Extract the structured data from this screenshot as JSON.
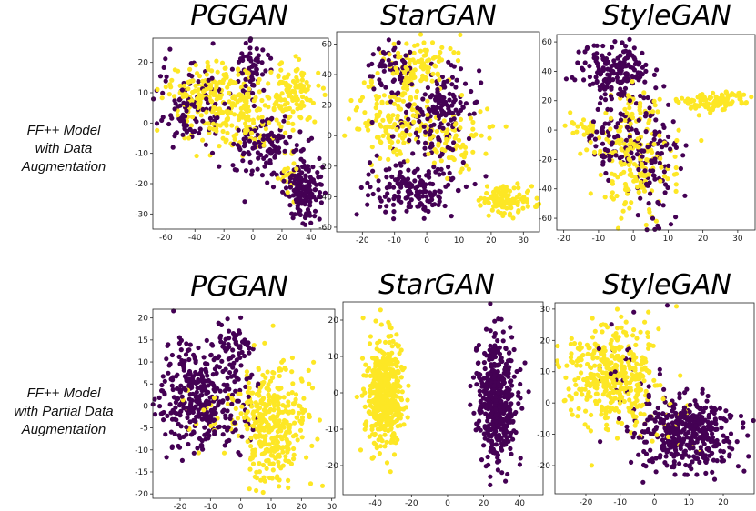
{
  "row_labels": [
    [
      "FF++ Model",
      "with Data",
      "Augmentation"
    ],
    [
      "FF++ Model",
      "with Partial Data",
      "Augmentation"
    ]
  ],
  "colors": {
    "class_a": "#440154",
    "class_b": "#fde725",
    "axis": "#222222"
  },
  "chart_data": [
    {
      "type": "scatter",
      "title": "PGGAN",
      "row": 0,
      "col": 0,
      "xlim": [
        -69,
        52
      ],
      "ylim": [
        -35,
        28
      ],
      "xticks": [
        -60,
        -40,
        -20,
        0,
        20,
        40
      ],
      "yticks": [
        -30,
        -20,
        -10,
        0,
        10,
        20
      ],
      "clusters": [
        {
          "cls": "b",
          "cx": -28,
          "cy": 10,
          "sx": 14,
          "sy": 5,
          "n": 180
        },
        {
          "cls": "a",
          "cx": -42,
          "cy": 5,
          "sx": 12,
          "sy": 7,
          "n": 110
        },
        {
          "cls": "b",
          "cx": 28,
          "cy": 10,
          "sx": 8,
          "sy": 5,
          "n": 110
        },
        {
          "cls": "a",
          "cx": 0,
          "cy": 18,
          "sx": 6,
          "sy": 5,
          "n": 60
        },
        {
          "cls": "b",
          "cx": -10,
          "cy": 2,
          "sx": 18,
          "sy": 7,
          "n": 120
        },
        {
          "cls": "a",
          "cx": 10,
          "cy": -8,
          "sx": 12,
          "sy": 6,
          "n": 110
        },
        {
          "cls": "a",
          "cx": 37,
          "cy": -22,
          "sx": 6,
          "sy": 5,
          "n": 150
        },
        {
          "cls": "b",
          "cx": 25,
          "cy": -15,
          "sx": 4,
          "sy": 4,
          "n": 20
        }
      ]
    },
    {
      "type": "scatter",
      "title": "StarGAN",
      "row": 0,
      "col": 1,
      "xlim": [
        -28,
        35
      ],
      "ylim": [
        -63,
        68
      ],
      "xticks": [
        -20,
        -10,
        0,
        10,
        20,
        30
      ],
      "yticks": [
        -60,
        -40,
        -20,
        0,
        20,
        40,
        60
      ],
      "clusters": [
        {
          "cls": "b",
          "cx": -2,
          "cy": 45,
          "sx": 6,
          "sy": 10,
          "n": 110
        },
        {
          "cls": "a",
          "cx": -12,
          "cy": 45,
          "sx": 5,
          "sy": 8,
          "n": 60
        },
        {
          "cls": "b",
          "cx": -10,
          "cy": 10,
          "sx": 7,
          "sy": 12,
          "n": 130
        },
        {
          "cls": "a",
          "cx": 2,
          "cy": 10,
          "sx": 6,
          "sy": 12,
          "n": 120
        },
        {
          "cls": "a",
          "cx": -5,
          "cy": -35,
          "sx": 8,
          "sy": 9,
          "n": 160
        },
        {
          "cls": "b",
          "cx": 10,
          "cy": -5,
          "sx": 5,
          "sy": 10,
          "n": 70
        },
        {
          "cls": "b",
          "cx": 24,
          "cy": -42,
          "sx": 4,
          "sy": 5,
          "n": 120
        },
        {
          "cls": "a",
          "cx": 8,
          "cy": 25,
          "sx": 4,
          "sy": 10,
          "n": 50
        }
      ]
    },
    {
      "type": "scatter",
      "title": "StyleGAN",
      "row": 0,
      "col": 2,
      "xlim": [
        -22,
        35
      ],
      "ylim": [
        -68,
        65
      ],
      "xticks": [
        -20,
        -10,
        0,
        10,
        20,
        30
      ],
      "yticks": [
        -60,
        -40,
        -20,
        0,
        20,
        40,
        60
      ],
      "clusters": [
        {
          "cls": "a",
          "cx": -5,
          "cy": 40,
          "sx": 5,
          "sy": 10,
          "n": 180
        },
        {
          "cls": "b",
          "cx": 24,
          "cy": 20,
          "sx": 5,
          "sy": 3,
          "n": 110
        },
        {
          "cls": "b",
          "cx": 0,
          "cy": -25,
          "sx": 6,
          "sy": 18,
          "n": 170
        },
        {
          "cls": "a",
          "cx": 6,
          "cy": -20,
          "sx": 4,
          "sy": 20,
          "n": 110
        },
        {
          "cls": "a",
          "cx": -6,
          "cy": -5,
          "sx": 4,
          "sy": 12,
          "n": 70
        },
        {
          "cls": "b",
          "cx": -15,
          "cy": 3,
          "sx": 3,
          "sy": 4,
          "n": 25
        },
        {
          "cls": "b",
          "cx": 2,
          "cy": 15,
          "sx": 4,
          "sy": 6,
          "n": 30
        }
      ]
    },
    {
      "type": "scatter",
      "title": "PGGAN",
      "row": 1,
      "col": 0,
      "xlim": [
        -29,
        31
      ],
      "ylim": [
        -21,
        22
      ],
      "xticks": [
        -20,
        -10,
        0,
        10,
        20,
        30
      ],
      "yticks": [
        -20,
        -15,
        -10,
        -5,
        0,
        5,
        10,
        15,
        20
      ],
      "clusters": [
        {
          "cls": "a",
          "cx": -13,
          "cy": 2,
          "sx": 7,
          "sy": 6,
          "n": 360
        },
        {
          "cls": "a",
          "cx": -3,
          "cy": 12,
          "sx": 3,
          "sy": 4,
          "n": 60
        },
        {
          "cls": "b",
          "cx": 10,
          "cy": -4,
          "sx": 6,
          "sy": 6.5,
          "n": 380
        },
        {
          "cls": "b",
          "cx": -13,
          "cy": -3,
          "sx": 6,
          "sy": 4,
          "n": 20
        }
      ]
    },
    {
      "type": "scatter",
      "title": "StarGAN",
      "row": 1,
      "col": 1,
      "xlim": [
        -58,
        53
      ],
      "ylim": [
        -28,
        25
      ],
      "xticks": [
        -40,
        -20,
        0,
        20,
        40
      ],
      "yticks": [
        -20,
        -10,
        0,
        10,
        20
      ],
      "clusters": [
        {
          "cls": "b",
          "cx": -35,
          "cy": 0,
          "sx": 5.5,
          "sy": 8,
          "n": 450
        },
        {
          "cls": "a",
          "cx": 27,
          "cy": -2,
          "sx": 5.5,
          "sy": 8,
          "n": 450
        }
      ]
    },
    {
      "type": "scatter",
      "title": "StyleGAN",
      "row": 1,
      "col": 2,
      "xlim": [
        -29,
        29
      ],
      "ylim": [
        -29,
        32
      ],
      "xticks": [
        -20,
        -10,
        0,
        10,
        20
      ],
      "yticks": [
        -20,
        -10,
        0,
        10,
        20,
        30
      ],
      "clusters": [
        {
          "cls": "b",
          "cx": -12,
          "cy": 9,
          "sx": 6.5,
          "sy": 8,
          "n": 400
        },
        {
          "cls": "a",
          "cx": 10,
          "cy": -10,
          "sx": 7,
          "sy": 6,
          "n": 400
        },
        {
          "cls": "a",
          "cx": -10,
          "cy": 12,
          "sx": 5,
          "sy": 7,
          "n": 25
        },
        {
          "cls": "b",
          "cx": 5,
          "cy": -5,
          "sx": 5,
          "sy": 5,
          "n": 25
        }
      ]
    }
  ]
}
